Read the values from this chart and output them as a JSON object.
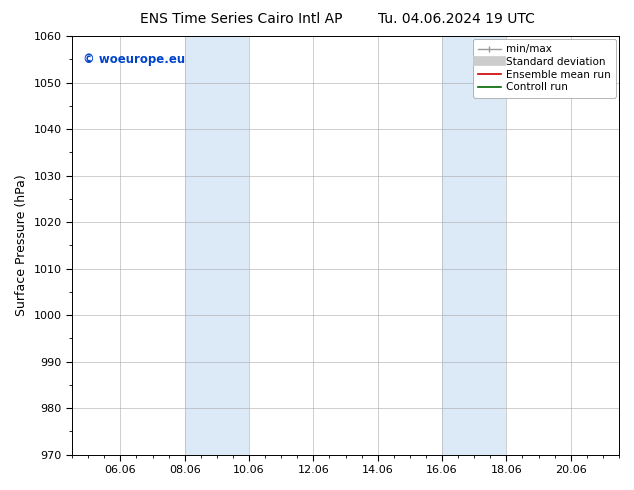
{
  "title_left": "ENS Time Series Cairo Intl AP",
  "title_right": "Tu. 04.06.2024 19 UTC",
  "ylabel": "Surface Pressure (hPa)",
  "ylim": [
    970,
    1060
  ],
  "yticks": [
    970,
    980,
    990,
    1000,
    1010,
    1020,
    1030,
    1040,
    1050,
    1060
  ],
  "xtick_labels": [
    "06.06",
    "08.06",
    "10.06",
    "12.06",
    "14.06",
    "16.06",
    "18.06",
    "20.06"
  ],
  "xtick_positions": [
    2.0,
    4.0,
    6.0,
    8.0,
    10.0,
    12.0,
    14.0,
    16.0
  ],
  "xlim": [
    0.5,
    17.5
  ],
  "shade_bands": [
    {
      "x_start": 4.0,
      "x_end": 6.0
    },
    {
      "x_start": 12.0,
      "x_end": 14.0
    }
  ],
  "shade_color": "#dce9f7",
  "background_color": "#ffffff",
  "watermark_text": "© woeurope.eu",
  "watermark_color": "#0044cc",
  "legend_items": [
    {
      "label": "min/max",
      "color": "#aaaaaa"
    },
    {
      "label": "Standard deviation",
      "color": "#cccccc"
    },
    {
      "label": "Ensemble mean run",
      "color": "#cc0000"
    },
    {
      "label": "Controll run",
      "color": "#006600"
    }
  ],
  "title_fontsize": 10,
  "tick_fontsize": 8,
  "ylabel_fontsize": 9,
  "legend_fontsize": 7.5,
  "grid_color": "#aaaaaa",
  "axis_color": "#000000",
  "minor_tick_count": 3
}
